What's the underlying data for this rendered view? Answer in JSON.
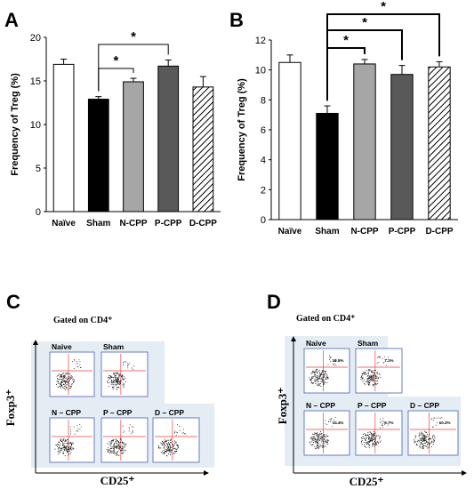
{
  "panels": {
    "A": {
      "letter": "A"
    },
    "B": {
      "letter": "B"
    },
    "C": {
      "letter": "C",
      "gated_label": "Gated on CD4⁺",
      "y_axis_label": "Foxp3⁺",
      "x_axis_label": "CD25⁺",
      "plots": [
        {
          "label": "Naive",
          "quadrant_value": ""
        },
        {
          "label": "Sham",
          "quadrant_value": ""
        },
        {
          "label": "N – CPP",
          "quadrant_value": ""
        },
        {
          "label": "P – CPP",
          "quadrant_value": ""
        },
        {
          "label": "D – CPP",
          "quadrant_value": ""
        }
      ]
    },
    "D": {
      "letter": "D",
      "gated_label": "Gated on CD4⁺",
      "y_axis_label": "Foxp3⁺",
      "x_axis_label": "CD25⁺",
      "plots": [
        {
          "label": "Naive",
          "quadrant_value": "10.5%"
        },
        {
          "label": "Sham",
          "quadrant_value": "7.1%"
        },
        {
          "label": "N – CPP",
          "quadrant_value": "10.4%"
        },
        {
          "label": "P – CPP",
          "quadrant_value": "9.7%"
        },
        {
          "label": "D – CPP",
          "quadrant_value": "10.2%"
        }
      ]
    }
  },
  "colors": {
    "naive": "#ffffff",
    "sham": "#000000",
    "n_cpp": "#a6a6a6",
    "p_cpp": "#595959",
    "d_cpp": "hatched",
    "flow_bg": "#e3edf3",
    "flow_gate": "#e8423f",
    "flow_frame": "#4a5fb5"
  },
  "chart_data": [
    {
      "type": "bar",
      "panel": "A",
      "categories": [
        "Naïve",
        "Sham",
        "N-CPP",
        "P-CPP",
        "D-CPP"
      ],
      "values": [
        16.9,
        12.9,
        14.9,
        16.7,
        14.3
      ],
      "errors": [
        0.6,
        0.3,
        0.4,
        0.7,
        1.2
      ],
      "title": "",
      "xlabel": "",
      "ylabel": "Frequency of Treg (%)",
      "ylim": [
        0,
        20
      ],
      "yticks": [
        0,
        5,
        10,
        15,
        20
      ],
      "significance": [
        {
          "from": "Sham",
          "to": "N-CPP",
          "label": "*"
        },
        {
          "from": "Sham",
          "to": "P-CPP",
          "label": "*"
        }
      ]
    },
    {
      "type": "bar",
      "panel": "B",
      "categories": [
        "Naïve",
        "Sham",
        "N-CPP",
        "P-CPP",
        "D-CPP"
      ],
      "values": [
        10.5,
        7.1,
        10.4,
        9.7,
        10.2
      ],
      "errors": [
        0.5,
        0.5,
        0.3,
        0.6,
        0.35
      ],
      "title": "",
      "xlabel": "",
      "ylabel": "Frequency of Treg (%)",
      "ylim": [
        0,
        12
      ],
      "yticks": [
        0,
        2,
        4,
        6,
        8,
        10,
        12
      ],
      "significance": [
        {
          "from": "Sham",
          "to": "N-CPP",
          "label": "*"
        },
        {
          "from": "Sham",
          "to": "P-CPP",
          "label": "*"
        },
        {
          "from": "Sham",
          "to": "D-CPP",
          "label": "*"
        }
      ]
    }
  ]
}
